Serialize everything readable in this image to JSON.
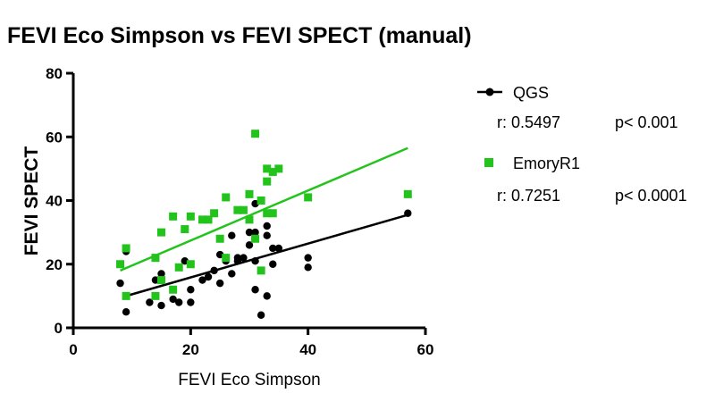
{
  "chart_data": {
    "type": "scatter",
    "title": "FEVI Eco Simpson vs FEVI SPECT (manual)",
    "xlabel": "FEVI Eco Simpson",
    "ylabel": "FEVI SPECT",
    "xlim": [
      0,
      60
    ],
    "ylim": [
      0,
      80
    ],
    "xticks": [
      "0",
      "20",
      "40",
      "60"
    ],
    "yticks": [
      "0",
      "20",
      "40",
      "60",
      "80"
    ],
    "grid": false,
    "legend_position": "right",
    "series": [
      {
        "name": "QGS",
        "color": "#000000",
        "marker": "circle",
        "stats": {
          "r": "r: 0.5497",
          "p": "p< 0.001"
        },
        "fit": {
          "x": [
            9,
            57
          ],
          "y": [
            10,
            35.5
          ]
        },
        "points": [
          [
            8,
            14
          ],
          [
            9,
            24
          ],
          [
            9,
            5
          ],
          [
            13,
            8
          ],
          [
            14,
            15
          ],
          [
            15,
            17
          ],
          [
            15,
            7
          ],
          [
            17,
            9
          ],
          [
            18,
            8
          ],
          [
            19,
            21
          ],
          [
            20,
            12
          ],
          [
            20,
            8
          ],
          [
            22,
            15
          ],
          [
            23,
            16
          ],
          [
            24,
            18
          ],
          [
            25,
            14
          ],
          [
            25,
            23
          ],
          [
            26,
            21
          ],
          [
            27,
            17
          ],
          [
            27,
            29
          ],
          [
            28,
            21
          ],
          [
            28,
            22
          ],
          [
            29,
            22
          ],
          [
            30,
            26
          ],
          [
            30,
            30
          ],
          [
            31,
            30
          ],
          [
            31,
            12
          ],
          [
            31,
            39
          ],
          [
            31,
            21
          ],
          [
            32,
            4
          ],
          [
            33,
            10
          ],
          [
            33,
            29
          ],
          [
            33,
            32
          ],
          [
            34,
            25
          ],
          [
            34,
            20
          ],
          [
            35,
            25
          ],
          [
            40,
            19
          ],
          [
            40,
            22
          ],
          [
            57,
            36
          ]
        ]
      },
      {
        "name": "EmoryR1",
        "color": "#22c41c",
        "marker": "square",
        "stats": {
          "r": "r: 0.7251",
          "p": "p< 0.0001"
        },
        "fit": {
          "x": [
            8,
            57
          ],
          "y": [
            18,
            56.5
          ]
        },
        "points": [
          [
            8,
            20
          ],
          [
            9,
            25
          ],
          [
            9,
            10
          ],
          [
            14,
            10
          ],
          [
            14,
            22
          ],
          [
            15,
            30
          ],
          [
            15,
            15
          ],
          [
            17,
            35
          ],
          [
            17,
            12
          ],
          [
            18,
            19
          ],
          [
            19,
            31
          ],
          [
            20,
            35
          ],
          [
            20,
            20
          ],
          [
            22,
            34
          ],
          [
            23,
            34
          ],
          [
            24,
            36
          ],
          [
            25,
            28
          ],
          [
            26,
            41
          ],
          [
            26,
            22
          ],
          [
            28,
            37
          ],
          [
            29,
            37
          ],
          [
            30,
            34
          ],
          [
            30,
            42
          ],
          [
            31,
            61
          ],
          [
            31,
            28
          ],
          [
            32,
            40
          ],
          [
            32,
            18
          ],
          [
            33,
            36
          ],
          [
            33,
            46
          ],
          [
            33,
            50
          ],
          [
            34,
            36
          ],
          [
            34,
            49
          ],
          [
            35,
            50
          ],
          [
            40,
            41
          ],
          [
            57,
            42
          ]
        ]
      }
    ]
  }
}
